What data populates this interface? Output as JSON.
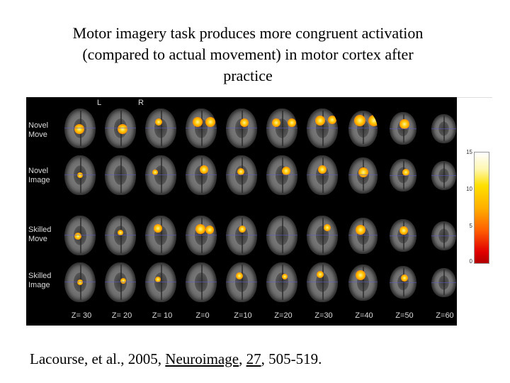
{
  "title_lines": [
    "Motor imagery task produces more congruent activation",
    "(compared to actual movement) in motor cortex after",
    "practice"
  ],
  "figure": {
    "left_label": "L",
    "right_label": "R",
    "rows": [
      {
        "line1": "Novel",
        "line2": "Move"
      },
      {
        "line1": "Novel",
        "line2": "Image"
      },
      {
        "line1": "Skilled",
        "line2": "Move"
      },
      {
        "line1": "Skilled",
        "line2": "Image"
      }
    ],
    "z_labels": [
      "Z= 30",
      "Z= 20",
      "Z= 10",
      "Z=0",
      "Z=10",
      "Z=20",
      "Z=30",
      "Z=40",
      "Z=50",
      "Z=60"
    ]
  },
  "colorbar": {
    "ticks": [
      "15",
      "10",
      "5",
      "0"
    ],
    "min": 0,
    "max": 15
  },
  "citation": {
    "authors": "Lacourse, et al., 2005, ",
    "journal": "Neuroimage",
    "sep1": ", ",
    "volume": "27",
    "sep2": ",  ",
    "pages": "505-519."
  }
}
